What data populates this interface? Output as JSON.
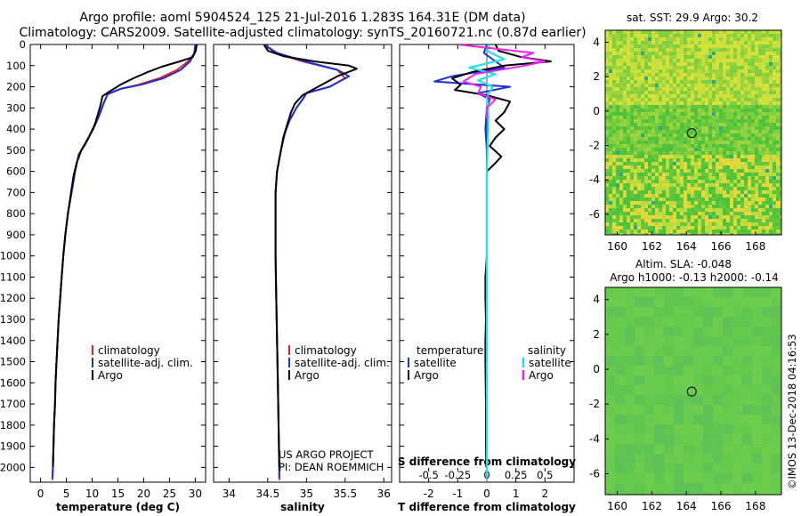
{
  "title_line1": "Argo profile: aoml 5904524_125 21-Jul-2016 1.283S 164.31E (DM data)",
  "title_line2": "Climatology: CARS2009. Satellite-adjusted climatology: synTS_20160721.nc (0.87d earlier)",
  "sst_title": "sat. SST: 29.9 Argo: 30.2",
  "sla_title1": "Altim. SLA: -0.048",
  "sla_title2": "Argo h1000: -0.13 h2000: -0.14",
  "credit_line1": "US ARGO PROJECT",
  "credit_line2": "PI: DEAN ROEMMICH",
  "side_stamp": "©IMOS 13-Dec-2018 04:16:53",
  "colors": {
    "climatology": "#e8211d",
    "satellite": "#1f2fd6",
    "argo": "#000000",
    "sal_satellite": "#22e0e8",
    "sal_argo": "#ee22ee",
    "map_base": "#55c43a"
  },
  "chart_data": [
    {
      "type": "line",
      "panel": "temperature",
      "xlabel": "temperature (deg C)",
      "xlim": [
        -2,
        32
      ],
      "xticks": [
        0,
        5,
        10,
        15,
        20,
        25,
        30
      ],
      "ylim": [
        2070,
        0
      ],
      "yticks": [
        0,
        100,
        200,
        300,
        400,
        500,
        600,
        700,
        800,
        900,
        1000,
        1100,
        1200,
        1300,
        1400,
        1500,
        1600,
        1700,
        1800,
        1900,
        2000
      ],
      "legend": [
        "climatology",
        "satellite-adj. clim.",
        "Argo"
      ],
      "series": [
        {
          "name": "climatology",
          "color": "#e8211d",
          "points": [
            [
              30.0,
              0
            ],
            [
              29.9,
              40
            ],
            [
              28.6,
              80
            ],
            [
              26.5,
              120
            ],
            [
              23.0,
              160
            ],
            [
              19.0,
              190
            ],
            [
              15.5,
              210
            ],
            [
              13.0,
              235
            ],
            [
              12.2,
              280
            ],
            [
              11.3,
              340
            ],
            [
              10.2,
              400
            ],
            [
              8.7,
              470
            ],
            [
              7.4,
              520
            ],
            [
              6.7,
              600
            ],
            [
              6.0,
              700
            ],
            [
              5.3,
              800
            ],
            [
              4.8,
              900
            ],
            [
              4.4,
              1000
            ],
            [
              4.1,
              1100
            ],
            [
              3.8,
              1200
            ],
            [
              3.5,
              1300
            ],
            [
              3.3,
              1400
            ],
            [
              3.1,
              1500
            ],
            [
              2.9,
              1600
            ],
            [
              2.8,
              1700
            ],
            [
              2.6,
              1800
            ],
            [
              2.5,
              1900
            ],
            [
              2.4,
              2000
            ],
            [
              2.3,
              2060
            ]
          ]
        },
        {
          "name": "satellite-adj. clim.",
          "color": "#1f2fd6",
          "points": [
            [
              30.0,
              0
            ],
            [
              29.8,
              40
            ],
            [
              29.0,
              80
            ],
            [
              27.2,
              120
            ],
            [
              23.8,
              160
            ],
            [
              19.5,
              190
            ],
            [
              15.5,
              210
            ],
            [
              13.0,
              235
            ],
            [
              12.2,
              280
            ],
            [
              11.3,
              340
            ],
            [
              10.2,
              400
            ],
            [
              8.7,
              470
            ],
            [
              7.4,
              520
            ],
            [
              6.7,
              600
            ],
            [
              6.0,
              700
            ],
            [
              5.3,
              800
            ],
            [
              4.8,
              900
            ],
            [
              4.4,
              1000
            ],
            [
              4.1,
              1100
            ],
            [
              3.8,
              1200
            ],
            [
              3.5,
              1300
            ],
            [
              3.3,
              1400
            ],
            [
              3.1,
              1500
            ],
            [
              2.9,
              1600
            ],
            [
              2.8,
              1700
            ],
            [
              2.6,
              1800
            ],
            [
              2.5,
              1900
            ],
            [
              2.4,
              2000
            ],
            [
              2.3,
              2050
            ]
          ]
        },
        {
          "name": "Argo",
          "color": "#000000",
          "points": [
            [
              30.3,
              0
            ],
            [
              30.1,
              30
            ],
            [
              29.5,
              60
            ],
            [
              27.0,
              80
            ],
            [
              23.5,
              105
            ],
            [
              20.8,
              130
            ],
            [
              18.0,
              160
            ],
            [
              15.5,
              190
            ],
            [
              13.2,
              225
            ],
            [
              12.0,
              245
            ],
            [
              11.6,
              290
            ],
            [
              11.0,
              340
            ],
            [
              10.5,
              380
            ],
            [
              9.3,
              440
            ],
            [
              7.9,
              500
            ],
            [
              7.0,
              560
            ],
            [
              6.4,
              620
            ],
            [
              5.9,
              700
            ],
            [
              5.3,
              800
            ],
            [
              4.8,
              900
            ],
            [
              4.4,
              1000
            ],
            [
              4.1,
              1100
            ],
            [
              3.8,
              1200
            ],
            [
              3.5,
              1300
            ],
            [
              3.3,
              1400
            ],
            [
              3.1,
              1500
            ],
            [
              2.9,
              1600
            ],
            [
              2.8,
              1700
            ],
            [
              2.6,
              1800
            ],
            [
              2.5,
              1900
            ],
            [
              2.4,
              2000
            ]
          ]
        }
      ]
    },
    {
      "type": "line",
      "panel": "salinity",
      "xlabel": "salinity",
      "xlim": [
        33.8,
        36.1
      ],
      "xticks": [
        34,
        34.5,
        35,
        35.5,
        36
      ],
      "ylim": [
        2070,
        0
      ],
      "legend": [
        "climatology",
        "satellite-adj. clim.",
        "Argo"
      ],
      "series": [
        {
          "name": "climatology",
          "color": "#e8211d",
          "points": [
            [
              34.45,
              0
            ],
            [
              34.6,
              40
            ],
            [
              34.95,
              80
            ],
            [
              35.4,
              120
            ],
            [
              35.5,
              160
            ],
            [
              35.3,
              200
            ],
            [
              35.0,
              230
            ],
            [
              34.95,
              260
            ],
            [
              34.87,
              300
            ],
            [
              34.78,
              360
            ],
            [
              34.72,
              420
            ],
            [
              34.67,
              500
            ],
            [
              34.62,
              600
            ],
            [
              34.6,
              700
            ],
            [
              34.6,
              800
            ],
            [
              34.6,
              1000
            ],
            [
              34.61,
              1200
            ],
            [
              34.62,
              1400
            ],
            [
              34.63,
              1600
            ],
            [
              34.64,
              1800
            ],
            [
              34.65,
              2060
            ]
          ]
        },
        {
          "name": "satellite-adj. clim.",
          "color": "#1f2fd6",
          "points": [
            [
              34.45,
              0
            ],
            [
              34.62,
              40
            ],
            [
              34.98,
              80
            ],
            [
              35.4,
              120
            ],
            [
              35.55,
              150
            ],
            [
              35.3,
              200
            ],
            [
              35.0,
              230
            ],
            [
              34.95,
              260
            ],
            [
              34.87,
              300
            ],
            [
              34.78,
              360
            ],
            [
              34.72,
              420
            ],
            [
              34.67,
              500
            ],
            [
              34.62,
              600
            ],
            [
              34.6,
              700
            ],
            [
              34.6,
              800
            ],
            [
              34.6,
              1000
            ],
            [
              34.61,
              1200
            ],
            [
              34.62,
              1400
            ],
            [
              34.63,
              1600
            ],
            [
              34.64,
              1800
            ],
            [
              34.65,
              2050
            ]
          ]
        },
        {
          "name": "Argo",
          "color": "#000000",
          "points": [
            [
              34.45,
              0
            ],
            [
              34.5,
              30
            ],
            [
              34.7,
              55
            ],
            [
              35.1,
              80
            ],
            [
              35.55,
              100
            ],
            [
              35.65,
              115
            ],
            [
              35.4,
              150
            ],
            [
              35.15,
              200
            ],
            [
              34.95,
              240
            ],
            [
              34.85,
              280
            ],
            [
              34.8,
              320
            ],
            [
              34.75,
              380
            ],
            [
              34.7,
              440
            ],
            [
              34.66,
              520
            ],
            [
              34.62,
              600
            ],
            [
              34.6,
              700
            ],
            [
              34.6,
              800
            ],
            [
              34.6,
              1000
            ],
            [
              34.61,
              1200
            ],
            [
              34.62,
              1400
            ],
            [
              34.63,
              1600
            ],
            [
              34.64,
              1800
            ],
            [
              34.65,
              2000
            ]
          ]
        }
      ]
    },
    {
      "type": "line",
      "panel": "difference",
      "xlabel": "T difference from climatology",
      "x2label": "S difference from climatology",
      "xlim": [
        -3.0,
        3.0
      ],
      "xticks": [
        -2,
        -1,
        0,
        1,
        2
      ],
      "x2ticks": [
        "-0.5",
        "-0.25",
        "0",
        "0.25",
        "0.5"
      ],
      "ylim": [
        2070,
        0
      ],
      "legend_temperature": [
        "temperature",
        "satellite",
        "Argo"
      ],
      "legend_salinity": [
        "salinity",
        "satellite",
        "Argo"
      ],
      "series": [
        {
          "name": "temperature satellite",
          "color": "#1f2fd6",
          "points": [
            [
              0.0,
              0
            ],
            [
              -0.1,
              40
            ],
            [
              0.3,
              80
            ],
            [
              0.6,
              110
            ],
            [
              -1.2,
              150
            ],
            [
              -1.8,
              175
            ],
            [
              0.8,
              200
            ],
            [
              -0.3,
              230
            ],
            [
              0.1,
              260
            ],
            [
              0.0,
              300
            ],
            [
              -0.05,
              400
            ],
            [
              0.0,
              500
            ],
            [
              0.0,
              700
            ],
            [
              0.0,
              2050
            ]
          ]
        },
        {
          "name": "temperature Argo",
          "color": "#000000",
          "points": [
            [
              0.3,
              0
            ],
            [
              0.4,
              30
            ],
            [
              1.2,
              60
            ],
            [
              2.2,
              80
            ],
            [
              0.6,
              100
            ],
            [
              -0.5,
              130
            ],
            [
              -1.2,
              160
            ],
            [
              -0.9,
              190
            ],
            [
              -1.1,
              215
            ],
            [
              0.0,
              240
            ],
            [
              0.8,
              270
            ],
            [
              0.6,
              320
            ],
            [
              0.3,
              360
            ],
            [
              0.6,
              400
            ],
            [
              0.3,
              440
            ],
            [
              0.1,
              480
            ],
            [
              0.5,
              530
            ],
            [
              0.3,
              560
            ],
            [
              0.0,
              600
            ],
            [
              0.0,
              700
            ],
            [
              0.0,
              900
            ],
            [
              0.0,
              1000
            ],
            [
              -0.05,
              1100
            ],
            [
              -0.05,
              1200
            ],
            [
              -0.03,
              1300
            ],
            [
              -0.05,
              1400
            ],
            [
              -0.05,
              1500
            ],
            [
              -0.03,
              1700
            ],
            [
              -0.03,
              1900
            ],
            [
              -0.02,
              2000
            ]
          ]
        },
        {
          "name": "salinity satellite",
          "color": "#22e0e8",
          "points": [
            [
              0.1,
              0
            ],
            [
              0.0,
              30
            ],
            [
              0.6,
              70
            ],
            [
              -0.6,
              110
            ],
            [
              0.3,
              140
            ],
            [
              -0.3,
              170
            ],
            [
              0.2,
              200
            ],
            [
              0.0,
              250
            ],
            [
              0.05,
              300
            ],
            [
              0.05,
              400
            ],
            [
              0.02,
              500
            ],
            [
              0.0,
              600
            ],
            [
              0.0,
              800
            ],
            [
              0.0,
              1000
            ],
            [
              0.0,
              1200
            ],
            [
              0.0,
              1400
            ],
            [
              0.0,
              1600
            ],
            [
              0.0,
              1800
            ],
            [
              0.0,
              2050
            ]
          ]
        },
        {
          "name": "salinity Argo",
          "color": "#ee22ee",
          "points": [
            [
              -1.0,
              0
            ],
            [
              0.3,
              20
            ],
            [
              1.6,
              40
            ],
            [
              1.2,
              60
            ],
            [
              2.0,
              80
            ],
            [
              1.3,
              100
            ],
            [
              -0.4,
              140
            ],
            [
              -0.8,
              175
            ],
            [
              -0.2,
              200
            ],
            [
              -0.3,
              230
            ],
            [
              0.3,
              260
            ],
            [
              0.0,
              300
            ],
            [
              0.0,
              350
            ]
          ]
        }
      ]
    },
    {
      "type": "heatmap",
      "panel": "satellite SST map",
      "title": "sat. SST: 29.9 Argo: 30.2",
      "xlim": [
        159.3,
        169.5
      ],
      "ylim": [
        -7.2,
        4.7
      ],
      "xticks": [
        160,
        162,
        164,
        166,
        168
      ],
      "yticks": [
        4,
        2,
        0,
        -2,
        -4,
        -6
      ],
      "marker": {
        "lon": 164.31,
        "lat": -1.283
      }
    },
    {
      "type": "heatmap",
      "panel": "altimetry SLA map",
      "xlim": [
        159.3,
        169.5
      ],
      "ylim": [
        -7.2,
        4.7
      ],
      "xticks": [
        160,
        162,
        164,
        166,
        168
      ],
      "yticks": [
        4,
        2,
        0,
        -2,
        -4,
        -6
      ],
      "marker": {
        "lon": 164.31,
        "lat": -1.283
      }
    }
  ]
}
